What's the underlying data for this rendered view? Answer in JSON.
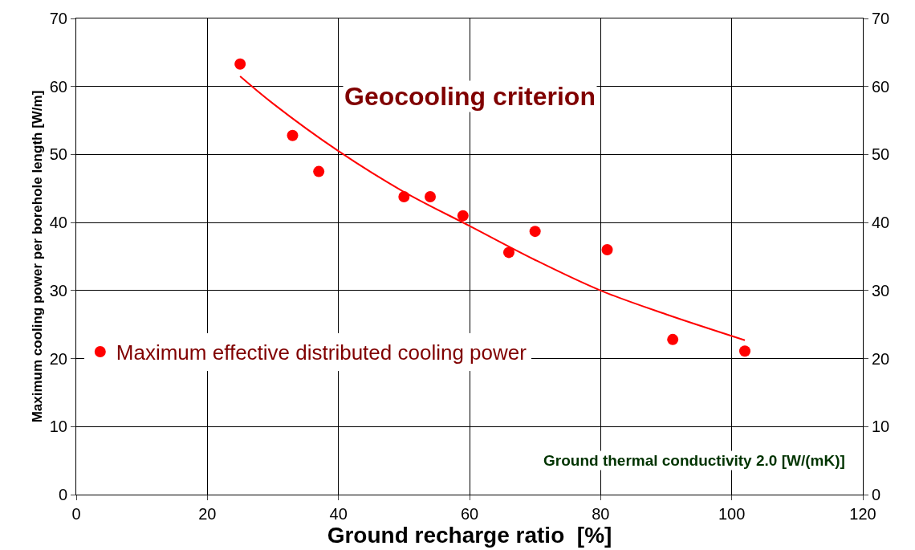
{
  "chart_data": {
    "type": "scatter",
    "xlabel": "Ground recharge ratio  [%]",
    "ylabel": "Maximum cooling power per borehole length [W/m]",
    "xlim": [
      0,
      120
    ],
    "xticks": [
      0,
      20,
      40,
      60,
      80,
      100,
      120
    ],
    "ylim": [
      0,
      70
    ],
    "yticks": [
      0,
      10,
      20,
      30,
      40,
      50,
      60,
      70
    ],
    "y2lim": [
      0,
      70
    ],
    "y2ticks": [
      0,
      10,
      20,
      30,
      40,
      50,
      60,
      70
    ],
    "grid": true,
    "legend": "left",
    "series": [
      {
        "name": "Maximum effective distributed cooling power",
        "color": "#ff0000",
        "marker": "circle",
        "x": [
          25,
          33,
          37,
          50,
          54,
          59,
          66,
          70,
          81,
          91,
          102
        ],
        "values": [
          63.3,
          52.8,
          47.5,
          43.8,
          43.8,
          41.0,
          35.6,
          38.7,
          36.0,
          22.8,
          21.1
        ]
      },
      {
        "color": "#ff0000",
        "type": "line",
        "marker": "none",
        "axis": "y2",
        "x": [
          25,
          30,
          40,
          50,
          60,
          70,
          80,
          90,
          102
        ],
        "values": [
          61.5,
          57.5,
          50.5,
          44.5,
          39.5,
          34.5,
          30.0,
          26.5,
          22.7
        ]
      }
    ],
    "annotations": [
      "Geocooling criterion",
      "Ground thermal conductivity 2.0 [W/(mK)]"
    ]
  }
}
